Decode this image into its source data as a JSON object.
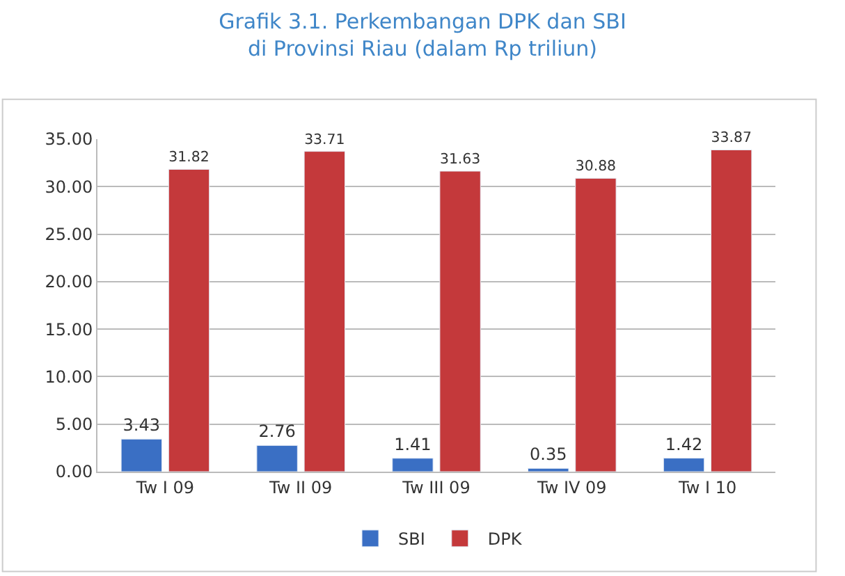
{
  "chart_data": {
    "type": "bar",
    "title": "Grafik 3.1. Perkembangan DPK dan SBI\ndi Provinsi Riau (dalam Rp triliun)",
    "categories": [
      "Tw I 09",
      "Tw II 09",
      "Tw III 09",
      "Tw IV 09",
      "Tw I 10"
    ],
    "series": [
      {
        "name": "SBI",
        "color": "#3a6fc4",
        "values": [
          3.43,
          2.76,
          1.41,
          0.35,
          1.42
        ]
      },
      {
        "name": "DPK",
        "color": "#c4393b",
        "values": [
          31.82,
          33.71,
          31.63,
          30.88,
          33.87
        ]
      }
    ],
    "ylim": [
      0,
      35
    ],
    "yticks": [
      {
        "value": 0,
        "label": "0.00"
      },
      {
        "value": 5,
        "label": "5.00"
      },
      {
        "value": 10,
        "label": "10.00"
      },
      {
        "value": 15,
        "label": "15.00"
      },
      {
        "value": 20,
        "label": "20.00"
      },
      {
        "value": 25,
        "label": "25.00"
      },
      {
        "value": 30,
        "label": "30.00"
      },
      {
        "value": 35,
        "label": "35.00"
      }
    ],
    "grid": "y",
    "legend": "bottom",
    "data_labels": true
  }
}
